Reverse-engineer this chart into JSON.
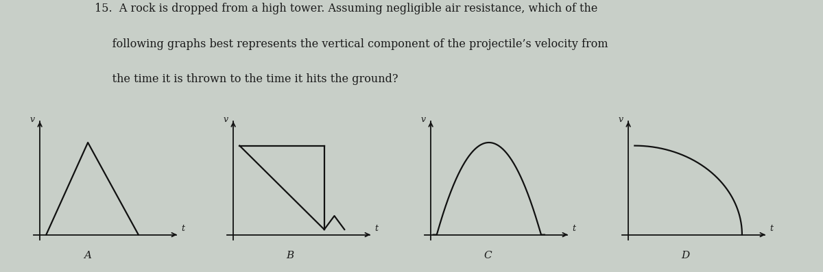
{
  "background_color": "#c8cfc8",
  "text_color": "#1a1a1a",
  "question_line1": "15.  A rock is dropped from a high tower. Assuming negligible air resistance, which of the",
  "question_line2": "     following graphs best represents the vertical component of the projectile’s velocity from",
  "question_line3": "     the time it is thrown to the time it hits the ground?",
  "line_color": "#111111",
  "axis_color": "#111111",
  "label_fontsize": 11,
  "question_fontsize": 11.5,
  "graphs": [
    "A",
    "B",
    "C",
    "D"
  ]
}
